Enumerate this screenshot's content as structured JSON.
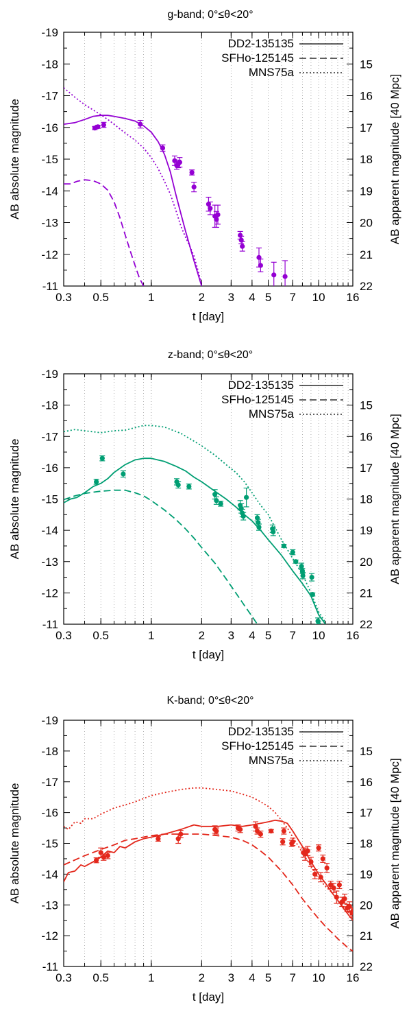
{
  "figure": {
    "left_axis_label": "AB absolute magnitude",
    "right_axis_label": "AB apparent magnitude [40 Mpc]",
    "x_axis_label": "t [day]"
  },
  "chart_data": [
    {
      "type": "line",
      "title": "g-band; 0°≤θ<20°",
      "xlabel": "t [day]",
      "ylabel": "AB absolute magnitude",
      "y2label": "AB apparent magnitude [40 Mpc]",
      "x_scale": "log",
      "xlim": [
        0.3,
        16
      ],
      "ylim": [
        -19,
        -11
      ],
      "y_inverted": true,
      "y2lim": [
        14,
        22
      ],
      "x_ticks": [
        0.3,
        0.5,
        1,
        2,
        3,
        4,
        5,
        7,
        10,
        16
      ],
      "y_ticks": [
        -19,
        -18,
        -17,
        -16,
        -15,
        -14,
        -13,
        -12,
        -11
      ],
      "y2_ticks": [
        15,
        16,
        17,
        18,
        19,
        20,
        21,
        22
      ],
      "grid": "vertical dotted",
      "legend_position": "top-right",
      "color": "#9400d3",
      "series": [
        {
          "name": "DD2-135135",
          "style": "solid",
          "x": [
            0.3,
            0.35,
            0.4,
            0.45,
            0.5,
            0.55,
            0.6,
            0.7,
            0.8,
            0.9,
            1.0,
            1.1,
            1.2,
            1.3,
            1.4,
            1.5,
            1.6,
            1.8,
            2.0
          ],
          "y": [
            -16.1,
            -16.15,
            -16.25,
            -16.35,
            -16.38,
            -16.38,
            -16.35,
            -16.28,
            -16.2,
            -16.05,
            -15.85,
            -15.55,
            -15.15,
            -14.6,
            -13.9,
            -13.3,
            -12.75,
            -11.8,
            -11.0
          ]
        },
        {
          "name": "SFHo-125145",
          "style": "dashed",
          "x": [
            0.3,
            0.33,
            0.36,
            0.4,
            0.45,
            0.5,
            0.55,
            0.6,
            0.65,
            0.7,
            0.75,
            0.8,
            0.85,
            0.9
          ],
          "y": [
            -14.22,
            -14.22,
            -14.3,
            -14.35,
            -14.32,
            -14.22,
            -14.02,
            -13.65,
            -13.15,
            -12.6,
            -12.1,
            -11.65,
            -11.25,
            -11.0
          ]
        },
        {
          "name": "MNS75a",
          "style": "dotted",
          "x": [
            0.3,
            0.35,
            0.4,
            0.45,
            0.5,
            0.55,
            0.6,
            0.65,
            0.7,
            0.8,
            0.9,
            1.0,
            1.1,
            1.2,
            1.3,
            1.4,
            1.5,
            1.6,
            1.7,
            1.8,
            1.9,
            2.0
          ],
          "y": [
            -17.25,
            -16.95,
            -16.72,
            -16.55,
            -16.4,
            -16.25,
            -16.1,
            -15.95,
            -15.82,
            -15.6,
            -15.35,
            -15.05,
            -14.7,
            -14.3,
            -13.9,
            -13.4,
            -12.9,
            -12.55,
            -12.25,
            -11.95,
            -11.5,
            -11.05
          ]
        }
      ],
      "observations": {
        "x": [
          0.46,
          0.48,
          0.52,
          0.86,
          1.17,
          1.38,
          1.42,
          1.45,
          1.48,
          1.75,
          1.8,
          2.2,
          2.25,
          2.4,
          2.45,
          2.5,
          3.4,
          3.45,
          3.5,
          4.4,
          4.5,
          5.4,
          6.3
        ],
        "y": [
          -15.98,
          -16.02,
          -16.08,
          -16.1,
          -15.35,
          -14.95,
          -14.8,
          -14.85,
          -14.9,
          -14.58,
          -14.12,
          -13.58,
          -13.45,
          -13.2,
          -13.1,
          -13.25,
          -12.6,
          -12.45,
          -12.25,
          -11.9,
          -11.65,
          -11.35,
          -11.3
        ],
        "yerr": [
          0.05,
          0.05,
          0.08,
          0.12,
          0.1,
          0.15,
          0.12,
          0.12,
          0.15,
          0.08,
          0.15,
          0.22,
          0.2,
          0.35,
          0.25,
          0.3,
          0.12,
          0.12,
          0.15,
          0.3,
          0.2,
          0.4,
          0.5
        ]
      }
    },
    {
      "type": "line",
      "title": "z-band; 0°≤θ<20°",
      "xlabel": "t [day]",
      "ylabel": "AB absolute magnitude",
      "y2label": "AB apparent magnitude [40 Mpc]",
      "x_scale": "log",
      "xlim": [
        0.3,
        16
      ],
      "ylim": [
        -19,
        -11
      ],
      "y_inverted": true,
      "y2lim": [
        14,
        22
      ],
      "x_ticks": [
        0.3,
        0.5,
        1,
        2,
        3,
        4,
        5,
        7,
        10,
        16
      ],
      "y_ticks": [
        -19,
        -18,
        -17,
        -16,
        -15,
        -14,
        -13,
        -12,
        -11
      ],
      "y2_ticks": [
        15,
        16,
        17,
        18,
        19,
        20,
        21,
        22
      ],
      "grid": "vertical dotted",
      "legend_position": "top-right",
      "color": "#009e73",
      "series": [
        {
          "name": "DD2-135135",
          "style": "solid",
          "x": [
            0.3,
            0.33,
            0.36,
            0.4,
            0.45,
            0.5,
            0.55,
            0.6,
            0.7,
            0.8,
            0.9,
            1.0,
            1.2,
            1.4,
            1.6,
            1.8,
            2.0,
            2.4,
            2.8,
            3.2,
            3.6,
            4.0,
            4.5,
            5.0,
            6.0,
            7.0,
            8.0,
            9.0,
            10.0,
            11.0
          ],
          "y": [
            -14.88,
            -15.0,
            -15.05,
            -15.2,
            -15.4,
            -15.5,
            -15.65,
            -15.85,
            -16.1,
            -16.25,
            -16.3,
            -16.3,
            -16.2,
            -16.05,
            -15.9,
            -15.7,
            -15.55,
            -15.25,
            -15.0,
            -14.75,
            -14.5,
            -14.3,
            -14.0,
            -13.7,
            -13.2,
            -12.7,
            -12.3,
            -11.9,
            -11.3,
            -11.0
          ]
        },
        {
          "name": "SFHo-125145",
          "style": "dashed",
          "x": [
            0.3,
            0.35,
            0.4,
            0.5,
            0.6,
            0.7,
            0.8,
            0.9,
            1.0,
            1.2,
            1.4,
            1.6,
            1.8,
            2.0,
            2.4,
            2.8,
            3.2,
            3.6,
            4.0,
            4.3
          ],
          "y": [
            -14.98,
            -15.1,
            -15.18,
            -15.25,
            -15.28,
            -15.28,
            -15.2,
            -15.1,
            -14.95,
            -14.65,
            -14.35,
            -14.05,
            -13.75,
            -13.45,
            -12.95,
            -12.45,
            -12.0,
            -11.6,
            -11.25,
            -11.0
          ]
        },
        {
          "name": "MNS75a",
          "style": "dotted",
          "x": [
            0.3,
            0.35,
            0.4,
            0.5,
            0.6,
            0.7,
            0.8,
            0.9,
            1.0,
            1.2,
            1.5,
            1.8,
            2.0,
            2.4,
            2.8,
            3.2,
            3.6,
            4.0,
            4.5,
            5.0,
            6.0,
            7.0,
            8.0,
            9.0,
            10.0,
            11.0
          ],
          "y": [
            -17.15,
            -17.22,
            -17.18,
            -17.12,
            -17.18,
            -17.2,
            -17.28,
            -17.35,
            -17.35,
            -17.3,
            -17.1,
            -16.85,
            -16.7,
            -16.4,
            -16.1,
            -15.85,
            -15.55,
            -15.2,
            -14.8,
            -14.5,
            -13.7,
            -13.1,
            -12.6,
            -12.0,
            -11.4,
            -11.05
          ]
        }
      ],
      "observations": {
        "x": [
          0.47,
          0.51,
          0.68,
          1.42,
          1.45,
          1.68,
          2.4,
          2.45,
          2.6,
          3.4,
          3.45,
          3.5,
          3.55,
          3.7,
          4.3,
          4.35,
          4.4,
          5.3,
          5.35,
          6.2,
          7.0,
          7.3,
          7.9,
          8.0,
          8.05,
          9.1,
          9.2,
          9.9,
          10.0
        ],
        "y": [
          -15.55,
          -16.3,
          -15.8,
          -15.55,
          -15.45,
          -15.4,
          -15.15,
          -14.95,
          -14.85,
          -14.8,
          -14.7,
          -14.55,
          -14.45,
          -15.05,
          -14.4,
          -14.25,
          -14.1,
          -14.05,
          -13.95,
          -13.5,
          -13.3,
          -13.0,
          -12.85,
          -12.7,
          -12.55,
          -12.5,
          -11.95,
          -11.1,
          -11.0
        ],
        "yerr": [
          0.08,
          0.08,
          0.1,
          0.1,
          0.1,
          0.08,
          0.15,
          0.12,
          0.08,
          0.15,
          0.15,
          0.12,
          0.12,
          0.3,
          0.1,
          0.1,
          0.1,
          0.12,
          0.12,
          0.05,
          0.08,
          0.05,
          0.1,
          0.08,
          0.1,
          0.12,
          0.05,
          0.1,
          0.1
        ]
      }
    },
    {
      "type": "line",
      "title": "K-band; 0°≤θ<20°",
      "xlabel": "t [day]",
      "ylabel": "AB absolute magnitude",
      "y2label": "AB apparent magnitude [40 Mpc]",
      "x_scale": "log",
      "xlim": [
        0.3,
        16
      ],
      "ylim": [
        -19,
        -11
      ],
      "y_inverted": true,
      "y2lim": [
        14,
        22
      ],
      "x_ticks": [
        0.3,
        0.5,
        1,
        2,
        3,
        4,
        5,
        7,
        10,
        16
      ],
      "y_ticks": [
        -19,
        -18,
        -17,
        -16,
        -15,
        -14,
        -13,
        -12,
        -11
      ],
      "y2_ticks": [
        15,
        16,
        17,
        18,
        19,
        20,
        21,
        22
      ],
      "grid": "vertical dotted",
      "legend_position": "top-right",
      "color": "#e3271b",
      "series": [
        {
          "name": "DD2-135135",
          "style": "solid",
          "x": [
            0.3,
            0.32,
            0.35,
            0.38,
            0.4,
            0.45,
            0.5,
            0.55,
            0.6,
            0.65,
            0.7,
            0.8,
            0.9,
            1.0,
            1.2,
            1.5,
            1.8,
            2.0,
            2.5,
            3.0,
            3.5,
            4.0,
            4.5,
            5.0,
            5.5,
            6.0,
            6.5,
            7.0,
            8.0,
            9.0,
            10.0,
            11.0,
            12.0,
            13.0,
            14.0,
            16.0
          ],
          "y": [
            -13.75,
            -14.05,
            -14.1,
            -14.3,
            -14.25,
            -14.4,
            -14.55,
            -14.75,
            -14.7,
            -14.9,
            -14.85,
            -15.05,
            -15.15,
            -15.2,
            -15.3,
            -15.45,
            -15.6,
            -15.55,
            -15.55,
            -15.6,
            -15.55,
            -15.6,
            -15.65,
            -15.7,
            -15.75,
            -15.72,
            -15.65,
            -15.4,
            -14.9,
            -14.4,
            -14.0,
            -13.7,
            -13.4,
            -13.15,
            -12.9,
            -12.5
          ]
        },
        {
          "name": "SFHo-125145",
          "style": "dashed",
          "x": [
            0.3,
            0.4,
            0.5,
            0.6,
            0.7,
            0.8,
            1.0,
            1.2,
            1.5,
            2.0,
            2.5,
            3.0,
            3.5,
            4.0,
            4.5,
            5.0,
            6.0,
            7.0,
            8.0,
            9.0,
            10.0,
            11.0,
            12.0,
            13.0,
            14.0,
            15.0,
            16.0
          ],
          "y": [
            -14.3,
            -14.6,
            -14.8,
            -14.95,
            -15.1,
            -15.15,
            -15.25,
            -15.3,
            -15.3,
            -15.3,
            -15.25,
            -15.2,
            -15.1,
            -14.95,
            -14.75,
            -14.55,
            -14.1,
            -13.65,
            -13.2,
            -12.85,
            -12.55,
            -12.3,
            -12.1,
            -11.9,
            -11.75,
            -11.6,
            -11.5
          ]
        },
        {
          "name": "MNS75a",
          "style": "dotted",
          "x": [
            0.3,
            0.32,
            0.35,
            0.38,
            0.4,
            0.45,
            0.5,
            0.55,
            0.6,
            0.7,
            0.8,
            1.0,
            1.2,
            1.5,
            1.8,
            2.0,
            2.5,
            3.0,
            3.5,
            4.0,
            4.5,
            5.0,
            5.5,
            6.0,
            6.5,
            7.0,
            8.0,
            9.0,
            10.0,
            11.0,
            12.0,
            13.0,
            14.0,
            16.0
          ],
          "y": [
            -15.55,
            -15.45,
            -15.7,
            -15.65,
            -15.8,
            -15.8,
            -15.95,
            -16.05,
            -16.15,
            -16.25,
            -16.35,
            -16.55,
            -16.65,
            -16.75,
            -16.8,
            -16.8,
            -16.75,
            -16.7,
            -16.6,
            -16.5,
            -16.35,
            -16.2,
            -16.0,
            -15.75,
            -15.5,
            -15.2,
            -14.7,
            -14.25,
            -13.85,
            -13.6,
            -13.4,
            -13.15,
            -12.95,
            -12.6
          ]
        },
        {
          "name": "",
          "style": "solid-fill",
          "x": [],
          "y": []
        }
      ],
      "observations": {
        "x": [
          0.47,
          0.5,
          0.52,
          0.55,
          1.1,
          1.45,
          1.5,
          2.4,
          2.45,
          3.3,
          3.4,
          4.2,
          4.3,
          4.5,
          5.2,
          6.1,
          6.2,
          6.9,
          7.0,
          8.1,
          8.3,
          8.6,
          9.0,
          9.5,
          10.0,
          10.3,
          10.6,
          11.2,
          11.8,
          12.3,
          12.8,
          13.3,
          13.8,
          14.3,
          14.8,
          15.3,
          15.8,
          16.0
        ],
        "y": [
          -14.45,
          -14.7,
          -14.55,
          -14.6,
          -15.15,
          -15.15,
          -15.3,
          -15.45,
          -15.4,
          -15.5,
          -15.45,
          -15.55,
          -15.4,
          -15.3,
          -15.4,
          -15.05,
          -15.4,
          -15.0,
          -15.05,
          -14.7,
          -14.65,
          -14.75,
          -14.4,
          -14.0,
          -14.85,
          -13.9,
          -14.5,
          -14.2,
          -13.65,
          -13.55,
          -13.25,
          -13.65,
          -13.1,
          -13.2,
          -12.9,
          -12.95,
          -12.75,
          -12.8
        ],
        "yerr": [
          0.08,
          0.15,
          0.1,
          0.1,
          0.08,
          0.15,
          0.12,
          0.12,
          0.1,
          0.1,
          0.1,
          0.15,
          0.1,
          0.1,
          0.05,
          0.1,
          0.1,
          0.1,
          0.12,
          0.15,
          0.2,
          0.15,
          0.15,
          0.15,
          0.1,
          0.15,
          0.12,
          0.15,
          0.12,
          0.15,
          0.2,
          0.12,
          0.15,
          0.15,
          0.12,
          0.15,
          0.15,
          0.1
        ]
      }
    }
  ]
}
